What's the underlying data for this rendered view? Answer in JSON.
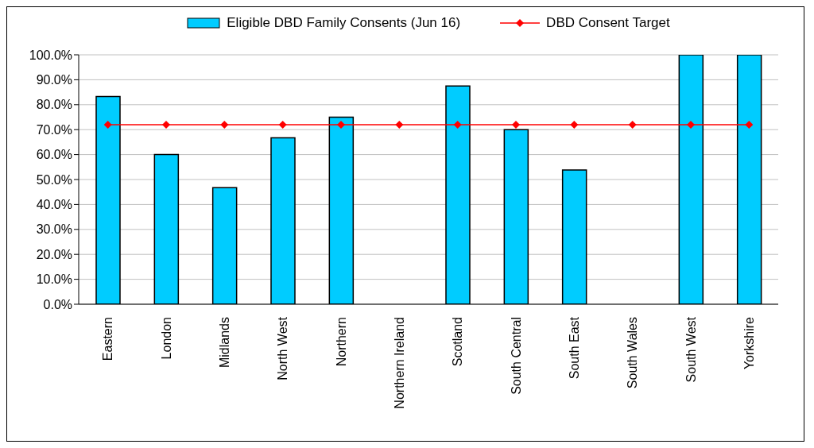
{
  "chart_data": {
    "type": "bar",
    "categories": [
      "Eastern",
      "London",
      "Midlands",
      "North West",
      "Northern",
      "Northern Ireland",
      "Scotland",
      "South Central",
      "South East",
      "South Wales",
      "South West",
      "Yorkshire"
    ],
    "series": [
      {
        "name": "Eligible DBD Family Consents (Jun 16)",
        "color": "#00ccff",
        "values": [
          83.3,
          60,
          46.7,
          66.7,
          75,
          0,
          87.5,
          70,
          53.8,
          0,
          100,
          100
        ]
      },
      {
        "name": "DBD Consent Target",
        "type": "line",
        "color": "#ff0000",
        "values": [
          72,
          72,
          72,
          72,
          72,
          72,
          72,
          72,
          72,
          72,
          72,
          72
        ]
      }
    ],
    "ylim": [
      0,
      100
    ],
    "yticks": [
      {
        "value": 0,
        "label": "0.0%"
      },
      {
        "value": 10,
        "label": "10.0%"
      },
      {
        "value": 20,
        "label": "20.0%"
      },
      {
        "value": 30,
        "label": "30.0%"
      },
      {
        "value": 40,
        "label": "40.0%"
      },
      {
        "value": 50,
        "label": "50.0%"
      },
      {
        "value": 60,
        "label": "60.0%"
      },
      {
        "value": 70,
        "label": "70.0%"
      },
      {
        "value": 80,
        "label": "80.0%"
      },
      {
        "value": 90,
        "label": "90.0%"
      },
      {
        "value": 100,
        "label": "100.0%"
      }
    ],
    "grid": "y",
    "legend": "top",
    "marker": "diamond"
  }
}
